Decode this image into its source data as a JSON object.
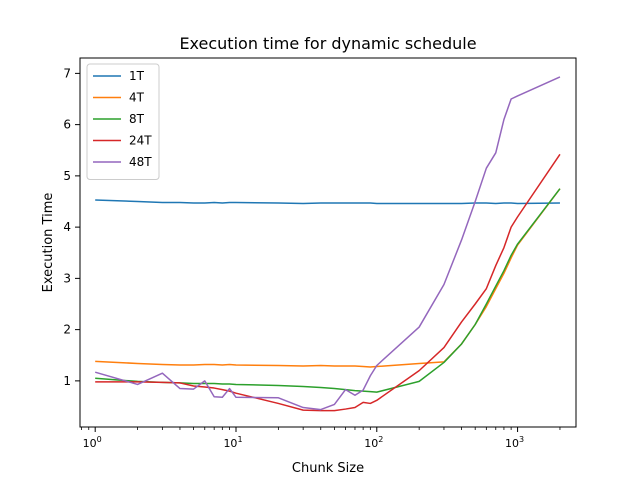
{
  "chart_data": {
    "type": "line",
    "title": "Execution time for dynamic schedule",
    "xlabel": "Chunk Size",
    "ylabel": "Execution Time",
    "xscale": "log",
    "xlim": [
      0.78,
      2600
    ],
    "ylim": [
      0.1,
      7.3
    ],
    "xticks": [
      {
        "value": 1,
        "base": "10",
        "exp": "0"
      },
      {
        "value": 10,
        "base": "10",
        "exp": "1"
      },
      {
        "value": 100,
        "base": "10",
        "exp": "2"
      },
      {
        "value": 1000,
        "base": "10",
        "exp": "3"
      }
    ],
    "yticks": [
      {
        "value": 1,
        "label": "1"
      },
      {
        "value": 2,
        "label": "2"
      },
      {
        "value": 3,
        "label": "3"
      },
      {
        "value": 4,
        "label": "4"
      },
      {
        "value": 5,
        "label": "5"
      },
      {
        "value": 6,
        "label": "6"
      },
      {
        "value": 7,
        "label": "7"
      }
    ],
    "grid": false,
    "legend_position": "top-left",
    "series": [
      {
        "name": "1T",
        "color": "#1f77b4",
        "points": [
          [
            1,
            4.53
          ],
          [
            2,
            4.5
          ],
          [
            3,
            4.48
          ],
          [
            4,
            4.48
          ],
          [
            5,
            4.47
          ],
          [
            6,
            4.47
          ],
          [
            7,
            4.48
          ],
          [
            8,
            4.47
          ],
          [
            9,
            4.48
          ],
          [
            10,
            4.48
          ],
          [
            20,
            4.47
          ],
          [
            30,
            4.46
          ],
          [
            40,
            4.47
          ],
          [
            50,
            4.47
          ],
          [
            60,
            4.47
          ],
          [
            70,
            4.47
          ],
          [
            80,
            4.47
          ],
          [
            90,
            4.47
          ],
          [
            100,
            4.46
          ],
          [
            200,
            4.46
          ],
          [
            300,
            4.46
          ],
          [
            400,
            4.46
          ],
          [
            500,
            4.47
          ],
          [
            600,
            4.47
          ],
          [
            700,
            4.46
          ],
          [
            800,
            4.47
          ],
          [
            900,
            4.47
          ],
          [
            1000,
            4.46
          ],
          [
            2000,
            4.47
          ]
        ]
      },
      {
        "name": "4T",
        "color": "#ff7f0e",
        "points": [
          [
            1,
            1.38
          ],
          [
            2,
            1.34
          ],
          [
            3,
            1.32
          ],
          [
            4,
            1.31
          ],
          [
            5,
            1.31
          ],
          [
            6,
            1.32
          ],
          [
            7,
            1.32
          ],
          [
            8,
            1.31
          ],
          [
            9,
            1.32
          ],
          [
            10,
            1.31
          ],
          [
            20,
            1.3
          ],
          [
            30,
            1.29
          ],
          [
            40,
            1.3
          ],
          [
            50,
            1.29
          ],
          [
            60,
            1.29
          ],
          [
            70,
            1.29
          ],
          [
            80,
            1.28
          ],
          [
            90,
            1.27
          ],
          [
            100,
            1.28
          ],
          [
            200,
            1.34
          ],
          [
            300,
            1.37
          ],
          [
            400,
            1.72
          ],
          [
            500,
            2.1
          ],
          [
            600,
            2.45
          ],
          [
            700,
            2.8
          ],
          [
            800,
            3.1
          ],
          [
            900,
            3.4
          ],
          [
            1000,
            3.65
          ],
          [
            2000,
            4.75
          ]
        ]
      },
      {
        "name": "8T",
        "color": "#2ca02c",
        "points": [
          [
            1,
            1.05
          ],
          [
            2,
            0.99
          ],
          [
            3,
            0.97
          ],
          [
            4,
            0.96
          ],
          [
            5,
            0.95
          ],
          [
            6,
            0.95
          ],
          [
            7,
            0.95
          ],
          [
            8,
            0.94
          ],
          [
            9,
            0.94
          ],
          [
            10,
            0.93
          ],
          [
            20,
            0.91
          ],
          [
            30,
            0.89
          ],
          [
            40,
            0.87
          ],
          [
            50,
            0.85
          ],
          [
            60,
            0.83
          ],
          [
            70,
            0.81
          ],
          [
            80,
            0.8
          ],
          [
            90,
            0.79
          ],
          [
            100,
            0.78
          ],
          [
            200,
            0.99
          ],
          [
            300,
            1.36
          ],
          [
            400,
            1.72
          ],
          [
            500,
            2.1
          ],
          [
            600,
            2.5
          ],
          [
            700,
            2.85
          ],
          [
            800,
            3.15
          ],
          [
            900,
            3.45
          ],
          [
            1000,
            3.67
          ],
          [
            2000,
            4.75
          ]
        ]
      },
      {
        "name": "24T",
        "color": "#d62728",
        "points": [
          [
            1,
            0.98
          ],
          [
            2,
            0.98
          ],
          [
            3,
            0.97
          ],
          [
            4,
            0.96
          ],
          [
            5,
            0.9
          ],
          [
            6,
            0.88
          ],
          [
            7,
            0.86
          ],
          [
            8,
            0.83
          ],
          [
            9,
            0.8
          ],
          [
            10,
            0.76
          ],
          [
            20,
            0.56
          ],
          [
            30,
            0.43
          ],
          [
            40,
            0.42
          ],
          [
            50,
            0.42
          ],
          [
            60,
            0.45
          ],
          [
            70,
            0.48
          ],
          [
            80,
            0.58
          ],
          [
            90,
            0.56
          ],
          [
            100,
            0.62
          ],
          [
            200,
            1.2
          ],
          [
            300,
            1.65
          ],
          [
            400,
            2.15
          ],
          [
            500,
            2.5
          ],
          [
            600,
            2.8
          ],
          [
            700,
            3.25
          ],
          [
            800,
            3.6
          ],
          [
            900,
            4.0
          ],
          [
            1000,
            4.2
          ],
          [
            2000,
            5.42
          ]
        ]
      },
      {
        "name": "48T",
        "color": "#9467bd",
        "points": [
          [
            1,
            1.17
          ],
          [
            2,
            0.93
          ],
          [
            3,
            1.15
          ],
          [
            4,
            0.85
          ],
          [
            5,
            0.84
          ],
          [
            6,
            1.0
          ],
          [
            7,
            0.69
          ],
          [
            8,
            0.68
          ],
          [
            9,
            0.85
          ],
          [
            10,
            0.68
          ],
          [
            20,
            0.67
          ],
          [
            30,
            0.48
          ],
          [
            40,
            0.44
          ],
          [
            50,
            0.54
          ],
          [
            60,
            0.83
          ],
          [
            70,
            0.72
          ],
          [
            80,
            0.82
          ],
          [
            90,
            1.1
          ],
          [
            100,
            1.3
          ],
          [
            200,
            2.05
          ],
          [
            300,
            2.88
          ],
          [
            400,
            3.75
          ],
          [
            500,
            4.5
          ],
          [
            600,
            5.15
          ],
          [
            700,
            5.45
          ],
          [
            800,
            6.1
          ],
          [
            900,
            6.5
          ],
          [
            1000,
            6.56
          ],
          [
            2000,
            6.93
          ]
        ]
      }
    ]
  }
}
